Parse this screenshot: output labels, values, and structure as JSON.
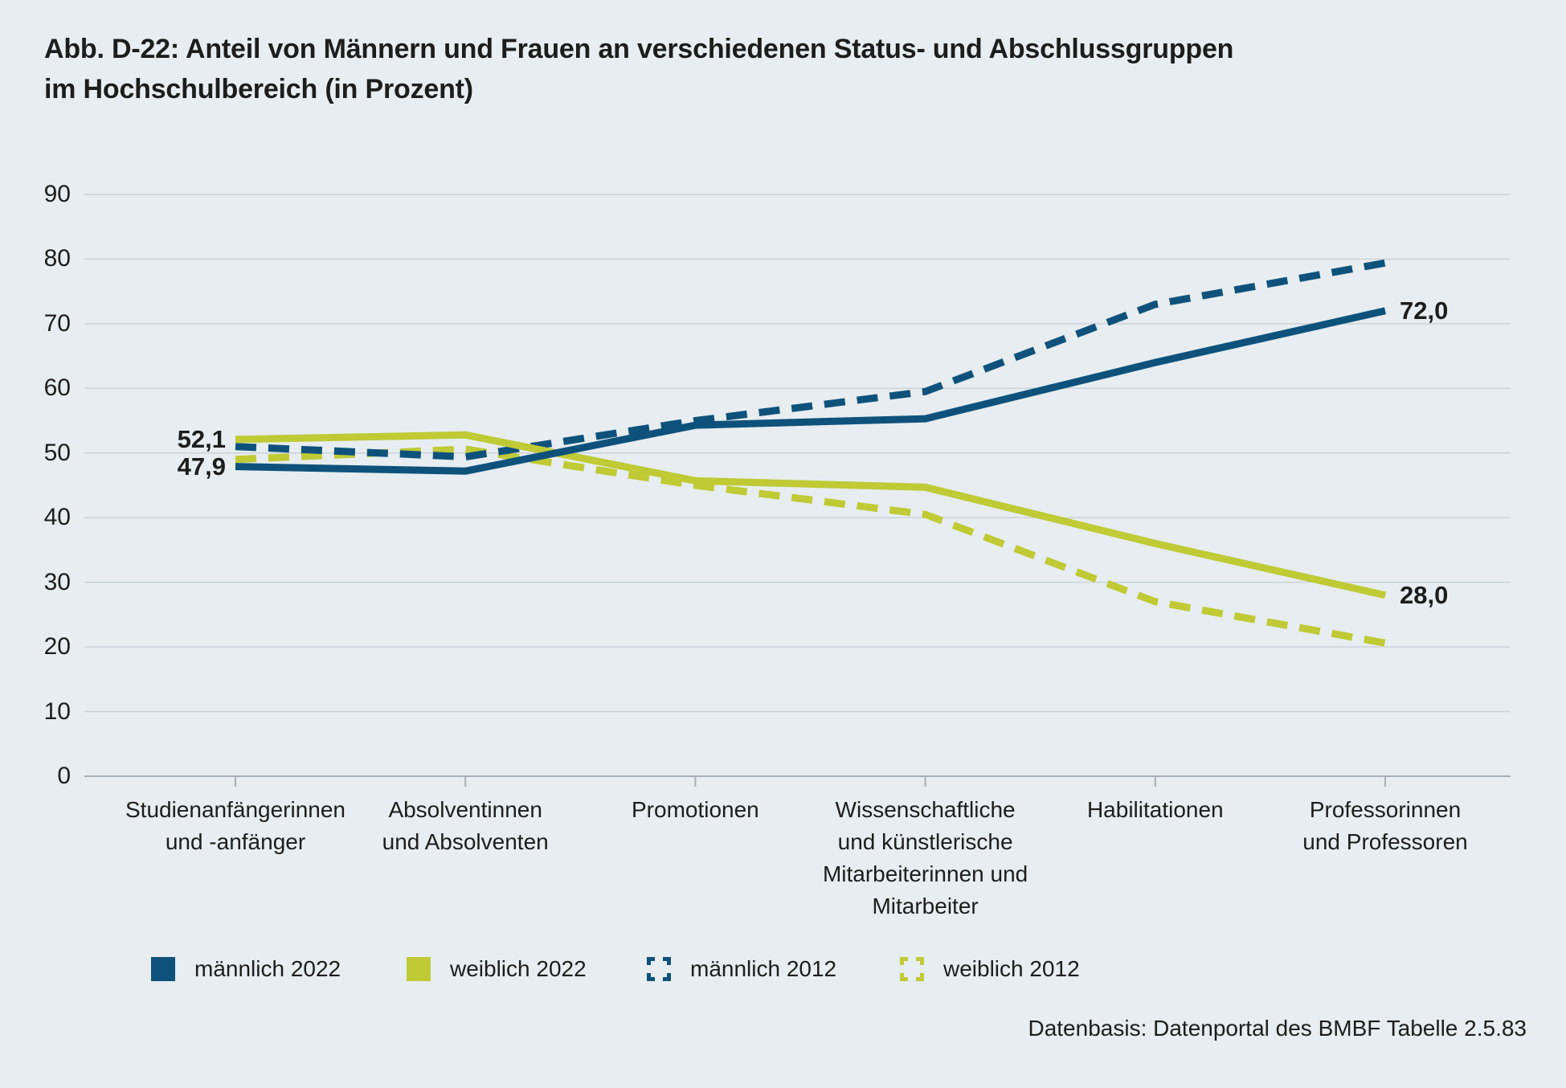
{
  "title": "Abb. D-22: Anteil von Männern und Frauen an verschiedenen Status- und Abschlussgruppen\nim Hochschulbereich (in Prozent)",
  "source": "Datenbasis: Datenportal des BMBF Tabelle 2.5.83",
  "colors": {
    "background": "#e7edf0",
    "male": "#0e527c",
    "female": "#bfca35",
    "grid": "#ccd3d9",
    "axis": "#a8b1b7",
    "text": "#1d1d1b"
  },
  "chart_data": {
    "type": "line",
    "title": "Abb. D-22: Anteil von Männern und Frauen an verschiedenen Status- und Abschlussgruppen im Hochschulbereich (in Prozent)",
    "categories": [
      "Studienanfängerinnen\nund -anfänger",
      "Absolventinnen\nund Absolventen",
      "Promotionen",
      "Wissenschaftliche\nund künstlerische\nMitarbeiterinnen und\nMitarbeiter",
      "Habilitationen",
      "Professorinnen\nund Professoren"
    ],
    "series": [
      {
        "name": "weiblich 2012",
        "style": "dashed",
        "color_key": "female",
        "values": [
          49.0,
          50.6,
          45.0,
          40.5,
          27.0,
          20.6
        ]
      },
      {
        "name": "männlich 2012",
        "style": "dashed",
        "color_key": "male",
        "values": [
          51.0,
          49.4,
          55.0,
          59.5,
          73.0,
          79.4
        ]
      },
      {
        "name": "weiblich 2022",
        "style": "solid",
        "color_key": "female",
        "values": [
          52.1,
          52.8,
          45.7,
          44.7,
          36.0,
          28.0
        ]
      },
      {
        "name": "männlich 2022",
        "style": "solid",
        "color_key": "male",
        "values": [
          47.9,
          47.2,
          54.3,
          55.3,
          64.0,
          72.0
        ]
      }
    ],
    "ylim": [
      0,
      90
    ],
    "yticks": [
      0,
      10,
      20,
      30,
      40,
      50,
      60,
      70,
      80,
      90
    ],
    "grid": true,
    "legend_position": "bottom",
    "point_labels": [
      {
        "text": "52,1",
        "series": "weiblich 2022",
        "point": 0,
        "anchor": "left"
      },
      {
        "text": "47,9",
        "series": "männlich 2022",
        "point": 0,
        "anchor": "left"
      },
      {
        "text": "72,0",
        "series": "männlich 2022",
        "point": 5,
        "anchor": "right"
      },
      {
        "text": "28,0",
        "series": "weiblich 2022",
        "point": 5,
        "anchor": "right"
      }
    ]
  },
  "legend": {
    "items": [
      {
        "label": "männlich 2022",
        "swatch": "solid-male"
      },
      {
        "label": "weiblich 2022",
        "swatch": "solid-female"
      },
      {
        "label": "männlich 2012",
        "swatch": "dashed-male"
      },
      {
        "label": "weiblich 2012",
        "swatch": "dashed-female"
      }
    ]
  }
}
